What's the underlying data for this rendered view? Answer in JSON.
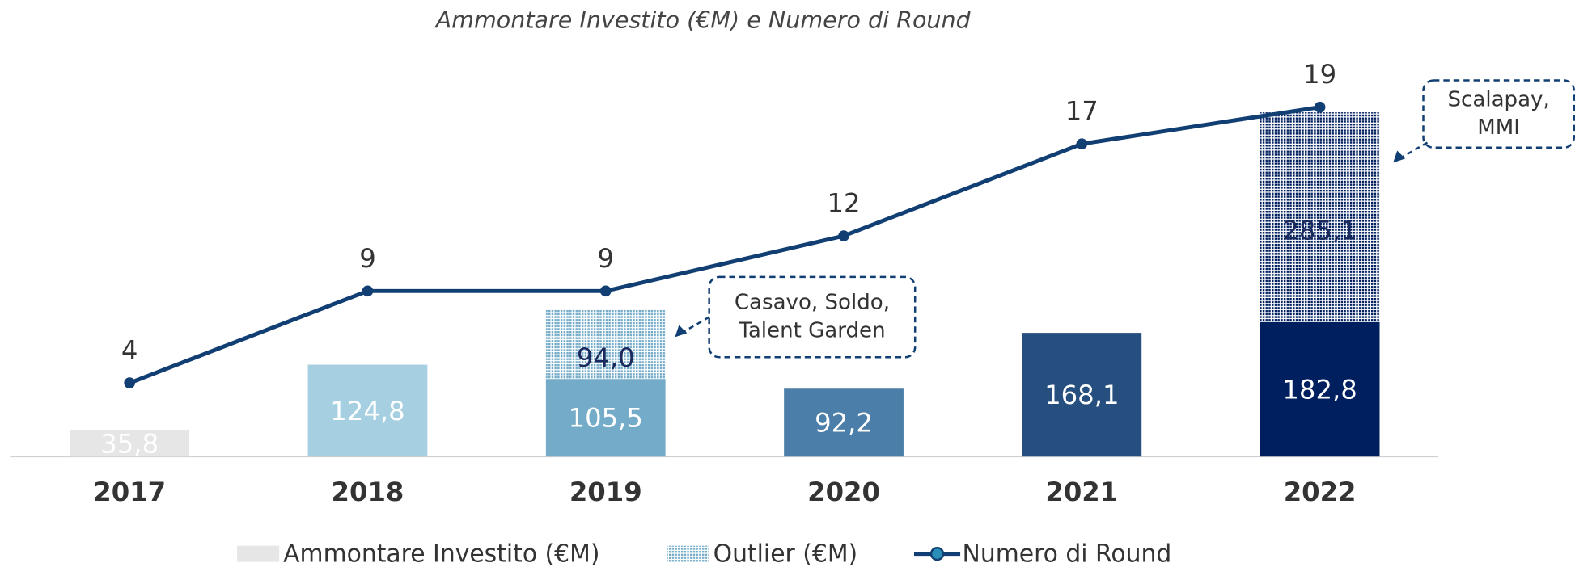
{
  "chart_data": {
    "type": "bar",
    "title": "Ammontare Investito (€M) e Numero di Round",
    "categories": [
      "2017",
      "2018",
      "2019",
      "2020",
      "2021",
      "2022"
    ],
    "series": [
      {
        "name": "Ammontare Investito (€M)",
        "color": "#e6e6e6",
        "colors": [
          "#e6e6e6",
          "#a6d0e2",
          "#74abc8",
          "#4b7ea8",
          "#264f80",
          "#001f5f"
        ],
        "values": [
          35.8,
          124.8,
          105.5,
          92.2,
          168.1,
          182.8
        ],
        "value_labels": [
          "35,8",
          "124,8",
          "105,5",
          "92,2",
          "168,1",
          "182,8"
        ]
      },
      {
        "name": "Outlier (€M)",
        "color": "#74abc8",
        "colors": [
          null,
          null,
          "#74abc8",
          null,
          null,
          "#001f5f"
        ],
        "values": [
          null,
          null,
          94.0,
          null,
          null,
          285.1
        ],
        "value_labels": [
          null,
          null,
          "94,0",
          null,
          null,
          "285,1"
        ]
      },
      {
        "name": "Numero di Round",
        "color": "#123f73",
        "type": "line",
        "axis": "y2",
        "values": [
          4,
          9,
          9,
          12,
          17,
          19
        ]
      }
    ],
    "ylim": [
      0,
      600
    ],
    "y2lim": [
      0,
      24
    ],
    "annotations": [
      {
        "category": 2,
        "lines": [
          "Casavo, Soldo,",
          "Talent Garden"
        ]
      },
      {
        "category": 5,
        "lines": [
          "Scalapay,",
          "MMI"
        ]
      }
    ]
  }
}
